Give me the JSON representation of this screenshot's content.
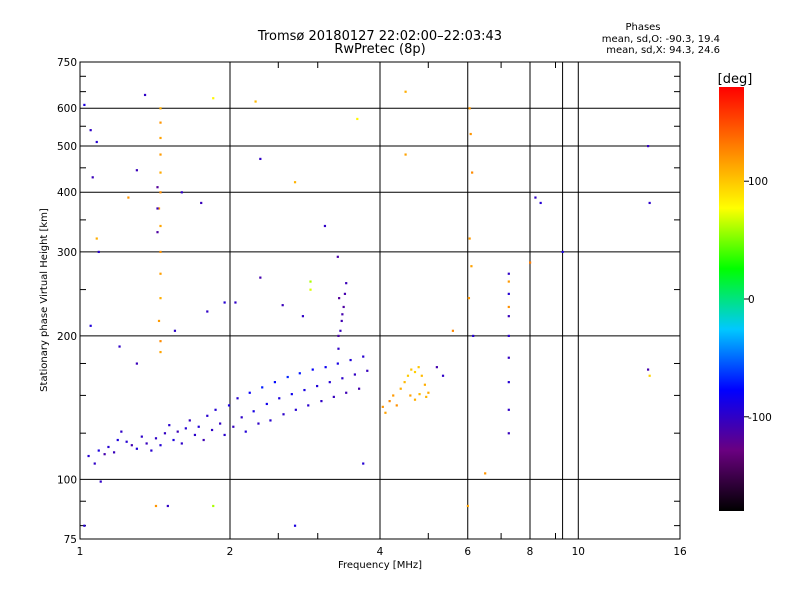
{
  "header": {
    "title": "Tromsø 20180127 22:02:00–22:03:43",
    "subtitle": "RwPretec (8p)",
    "phases_label": "Phases",
    "stat_o": "mean, sd,O: -90.3, 19.4",
    "stat_x": "mean, sd,X:  94.3, 24.6"
  },
  "chart_data": {
    "type": "scatter",
    "title": "Tromsø 20180127 22:02:00–22:03:43",
    "subtitle": "RwPretec (8p)",
    "xlabel": "Frequency [MHz]",
    "ylabel": "Stationary phase Virtual Height [km]",
    "x_scale": "log",
    "y_scale": "log",
    "xlim": [
      1,
      16
    ],
    "ylim": [
      75,
      750
    ],
    "x_ticks": [
      1,
      2,
      4,
      6,
      8,
      10,
      16
    ],
    "x_tick_labels": [
      "1",
      "2",
      "4",
      "6",
      "8",
      "10",
      "16"
    ],
    "y_ticks": [
      75,
      100,
      200,
      300,
      400,
      500,
      600,
      750
    ],
    "y_tick_labels": [
      "75",
      "100",
      "200",
      "300",
      "400",
      "500",
      "600",
      "750"
    ],
    "grid": true,
    "colorbar": {
      "label": "[deg]",
      "range": [
        -180,
        180
      ],
      "ticks": [
        100,
        0,
        -100
      ],
      "tick_labels": [
        "100",
        "0",
        "-100"
      ],
      "colors": [
        "#000000",
        "#6a0080",
        "#0000ff",
        "#00c8ff",
        "#00ff00",
        "#ffff00",
        "#ff8000",
        "#ff0000"
      ]
    },
    "series": [
      {
        "points": [
          [
            1.04,
            112,
            -95
          ],
          [
            1.07,
            108,
            -100
          ],
          [
            1.09,
            115,
            -90
          ],
          [
            1.12,
            113,
            -110
          ],
          [
            1.14,
            117,
            -95
          ],
          [
            1.17,
            114,
            -105
          ],
          [
            1.19,
            121,
            -90
          ],
          [
            1.21,
            126,
            -100
          ],
          [
            1.24,
            120,
            -95
          ],
          [
            1.27,
            118,
            -108
          ],
          [
            1.3,
            116,
            -92
          ],
          [
            1.33,
            123,
            -99
          ],
          [
            1.36,
            119,
            -104
          ],
          [
            1.39,
            115,
            -96
          ],
          [
            1.42,
            122,
            -100
          ],
          [
            1.45,
            118,
            -94
          ],
          [
            1.48,
            125,
            -102
          ],
          [
            1.51,
            130,
            -97
          ],
          [
            1.54,
            121,
            -91
          ],
          [
            1.57,
            126,
            -106
          ],
          [
            1.6,
            119,
            -99
          ],
          [
            1.63,
            128,
            -95
          ],
          [
            1.66,
            133,
            -103
          ],
          [
            1.7,
            124,
            -98
          ],
          [
            1.73,
            129,
            -93
          ],
          [
            1.77,
            121,
            -107
          ],
          [
            1.8,
            136,
            -96
          ],
          [
            1.84,
            127,
            -100
          ],
          [
            1.87,
            140,
            -94
          ],
          [
            1.91,
            131,
            -101
          ],
          [
            1.95,
            124,
            -97
          ],
          [
            1.99,
            143,
            -90
          ],
          [
            2.03,
            129,
            -103
          ],
          [
            2.07,
            148,
            -96
          ],
          [
            2.11,
            135,
            -99
          ],
          [
            2.15,
            126,
            -93
          ],
          [
            2.19,
            152,
            -80
          ],
          [
            2.23,
            139,
            -88
          ],
          [
            2.28,
            131,
            -100
          ],
          [
            2.32,
            156,
            -70
          ],
          [
            2.37,
            144,
            -85
          ],
          [
            2.41,
            133,
            -96
          ],
          [
            2.46,
            160,
            -75
          ],
          [
            2.51,
            148,
            -90
          ],
          [
            2.56,
            137,
            -98
          ],
          [
            2.61,
            164,
            -68
          ],
          [
            2.66,
            151,
            -84
          ],
          [
            2.71,
            140,
            -95
          ],
          [
            2.76,
            167,
            -72
          ],
          [
            2.82,
            154,
            -89
          ],
          [
            2.87,
            143,
            -97
          ],
          [
            2.93,
            170,
            -78
          ],
          [
            2.99,
            157,
            -92
          ],
          [
            3.05,
            146,
            -100
          ],
          [
            3.11,
            172,
            -82
          ],
          [
            3.17,
            160,
            -95
          ],
          [
            3.23,
            149,
            -104
          ],
          [
            3.29,
            175,
            -88
          ],
          [
            3.36,
            163,
            -98
          ],
          [
            3.42,
            152,
            -107
          ],
          [
            3.49,
            178,
            -92
          ],
          [
            3.56,
            166,
            -101
          ],
          [
            3.63,
            155,
            -110
          ],
          [
            3.7,
            181,
            -96
          ],
          [
            3.77,
            169,
            -104
          ],
          [
            3.3,
            200,
            -112
          ],
          [
            3.35,
            215,
            -108
          ],
          [
            3.38,
            230,
            -115
          ],
          [
            3.4,
            245,
            -110
          ],
          [
            3.42,
            258,
            -106
          ],
          [
            3.3,
            188,
            -100
          ],
          [
            3.33,
            205,
            -104
          ],
          [
            3.36,
            222,
            -110
          ],
          [
            3.31,
            240,
            -118
          ],
          [
            3.29,
            293,
            -112
          ],
          [
            1.45,
            600,
            110
          ],
          [
            1.45,
            560,
            120
          ],
          [
            1.45,
            520,
            115
          ],
          [
            1.45,
            480,
            118
          ],
          [
            1.45,
            440,
            112
          ],
          [
            1.45,
            400,
            122
          ],
          [
            1.44,
            370,
            117
          ],
          [
            1.45,
            340,
            113
          ],
          [
            1.45,
            300,
            121
          ],
          [
            1.45,
            270,
            116
          ],
          [
            1.45,
            240,
            110
          ],
          [
            1.44,
            215,
            118
          ],
          [
            1.45,
            195,
            124
          ],
          [
            1.45,
            185,
            114
          ],
          [
            1.43,
            370,
            -105
          ],
          [
            1.43,
            330,
            -115
          ],
          [
            1.43,
            410,
            -118
          ],
          [
            4.05,
            142,
            120
          ],
          [
            4.1,
            138,
            115
          ],
          [
            4.18,
            146,
            125
          ],
          [
            4.25,
            150,
            118
          ],
          [
            4.32,
            143,
            122
          ],
          [
            4.4,
            155,
            110
          ],
          [
            4.48,
            160,
            105
          ],
          [
            4.55,
            165,
            98
          ],
          [
            4.62,
            170,
            102
          ],
          [
            4.7,
            168,
            96
          ],
          [
            4.78,
            172,
            100
          ],
          [
            4.85,
            165,
            105
          ],
          [
            4.92,
            158,
            110
          ],
          [
            5.0,
            152,
            112
          ],
          [
            4.95,
            149,
            108
          ],
          [
            4.6,
            150,
            115
          ],
          [
            4.7,
            147,
            110
          ],
          [
            4.8,
            151,
            106
          ],
          [
            5.2,
            172,
            -110
          ],
          [
            5.35,
            165,
            -100
          ],
          [
            5.6,
            205,
            125
          ],
          [
            6.05,
            600,
            118
          ],
          [
            6.08,
            530,
            120
          ],
          [
            6.12,
            440,
            124
          ],
          [
            6.05,
            320,
            118
          ],
          [
            6.1,
            280,
            115
          ],
          [
            6.03,
            240,
            119
          ],
          [
            6.15,
            200,
            -95
          ],
          [
            7.25,
            270,
            -100
          ],
          [
            7.25,
            245,
            -95
          ],
          [
            7.25,
            220,
            -105
          ],
          [
            7.25,
            200,
            -98
          ],
          [
            7.25,
            180,
            -102
          ],
          [
            7.25,
            160,
            -95
          ],
          [
            7.25,
            140,
            -100
          ],
          [
            7.25,
            125,
            -104
          ],
          [
            7.25,
            260,
            118
          ],
          [
            7.25,
            230,
            122
          ],
          [
            8.2,
            390,
            -100
          ],
          [
            8.4,
            380,
            -95
          ],
          [
            9.3,
            300,
            -90
          ],
          [
            8.0,
            285,
            130
          ],
          [
            13.8,
            500,
            -102
          ],
          [
            13.9,
            380,
            -98
          ],
          [
            13.8,
            170,
            -110
          ],
          [
            13.9,
            165,
            95
          ],
          [
            1.02,
            610,
            -90
          ],
          [
            1.05,
            540,
            -100
          ],
          [
            1.08,
            510,
            -95
          ],
          [
            1.06,
            430,
            -105
          ],
          [
            1.09,
            300,
            -98
          ],
          [
            1.08,
            320,
            110
          ],
          [
            1.05,
            210,
            -92
          ],
          [
            1.1,
            99,
            -100
          ],
          [
            1.02,
            80,
            -95
          ],
          [
            1.35,
            640,
            -100
          ],
          [
            1.3,
            445,
            -105
          ],
          [
            1.25,
            390,
            120
          ],
          [
            1.6,
            400,
            -100
          ],
          [
            1.75,
            380,
            -105
          ],
          [
            1.85,
            630,
            80
          ],
          [
            2.25,
            620,
            105
          ],
          [
            2.3,
            470,
            -100
          ],
          [
            2.7,
            420,
            108
          ],
          [
            2.9,
            250,
            70
          ],
          [
            3.6,
            570,
            80
          ],
          [
            4.5,
            650,
            110
          ],
          [
            4.5,
            480,
            115
          ],
          [
            3.1,
            340,
            -100
          ],
          [
            2.7,
            80,
            -90
          ],
          [
            1.85,
            88,
            60
          ],
          [
            1.42,
            88,
            120
          ],
          [
            1.5,
            88,
            -100
          ],
          [
            6.5,
            103,
            120
          ],
          [
            6.0,
            88,
            115
          ],
          [
            3.7,
            108,
            -95
          ],
          [
            2.3,
            265,
            -110
          ],
          [
            2.55,
            232,
            -105
          ],
          [
            2.8,
            220,
            -100
          ],
          [
            2.9,
            260,
            60
          ],
          [
            2.05,
            235,
            -100
          ],
          [
            1.95,
            235,
            -95
          ],
          [
            1.8,
            225,
            -100
          ],
          [
            1.2,
            190,
            -100
          ],
          [
            1.3,
            175,
            -105
          ],
          [
            1.55,
            205,
            -98
          ]
        ]
      }
    ]
  }
}
